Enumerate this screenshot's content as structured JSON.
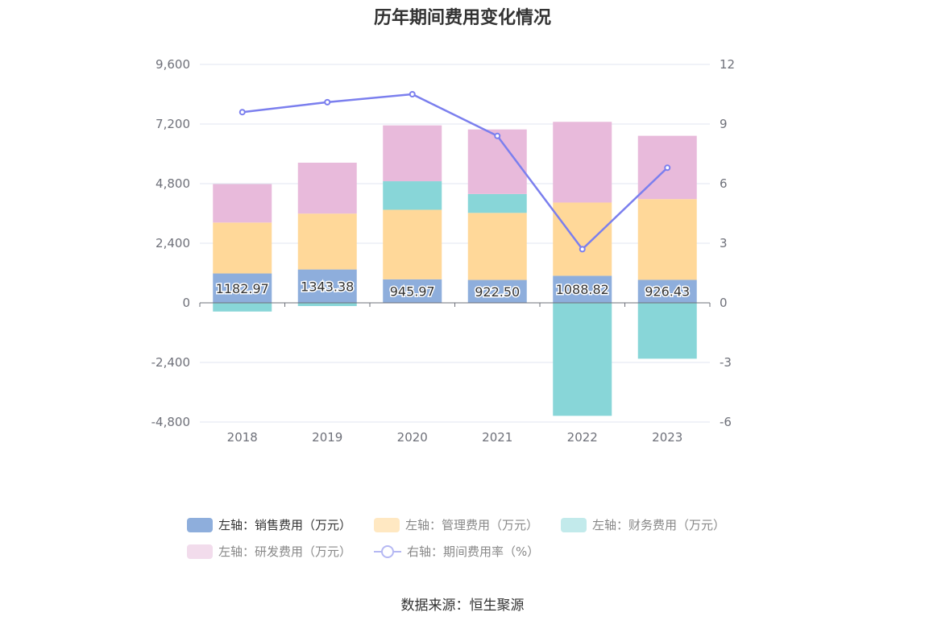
{
  "chart_data": {
    "type": "bar",
    "title": "历年期间费用变化情况",
    "categories": [
      "2018",
      "2019",
      "2020",
      "2021",
      "2022",
      "2023"
    ],
    "stacked": true,
    "series": [
      {
        "name": "左轴：销售费用（万元）",
        "axis": "left",
        "type": "bar",
        "color": "#8EAEDC",
        "values": [
          1182.97,
          1343.38,
          945.97,
          922.5,
          1088.82,
          926.43
        ],
        "labels": [
          "1182.97",
          "1343.38",
          "945.97",
          "922.50",
          "1088.82",
          "926.43"
        ]
      },
      {
        "name": "左轴：管理费用（万元）",
        "axis": "left",
        "type": "bar",
        "color": "#FFD899",
        "values": [
          2050,
          2250,
          2800,
          2700,
          2950,
          3250
        ]
      },
      {
        "name": "左轴：财务费用（万元）",
        "axis": "left",
        "type": "bar",
        "color": "#88D6D8",
        "values": [
          -350,
          -130,
          1150,
          760,
          -4550,
          -2250
        ]
      },
      {
        "name": "左轴：研发费用（万元）",
        "axis": "left",
        "type": "bar",
        "color": "#E8BADB",
        "values": [
          1550,
          2050,
          2250,
          2600,
          3250,
          2550
        ]
      },
      {
        "name": "右轴：期间费用率（%）",
        "axis": "right",
        "type": "line",
        "color": "#7B7FEE",
        "values": [
          9.6,
          10.1,
          10.5,
          8.4,
          2.7,
          6.8
        ]
      }
    ],
    "left_axis": {
      "min": -4800,
      "max": 9600,
      "step": 2400,
      "ticks": [
        "-4,800",
        "-2,400",
        "0",
        "2,400",
        "4,800",
        "7,200",
        "9,600"
      ]
    },
    "right_axis": {
      "min": -6,
      "max": 12,
      "step": 3,
      "ticks": [
        "-6",
        "-3",
        "0",
        "3",
        "6",
        "9",
        "12"
      ]
    },
    "legend_position": "bottom",
    "grid": true
  },
  "source": "数据来源：恒生聚源"
}
